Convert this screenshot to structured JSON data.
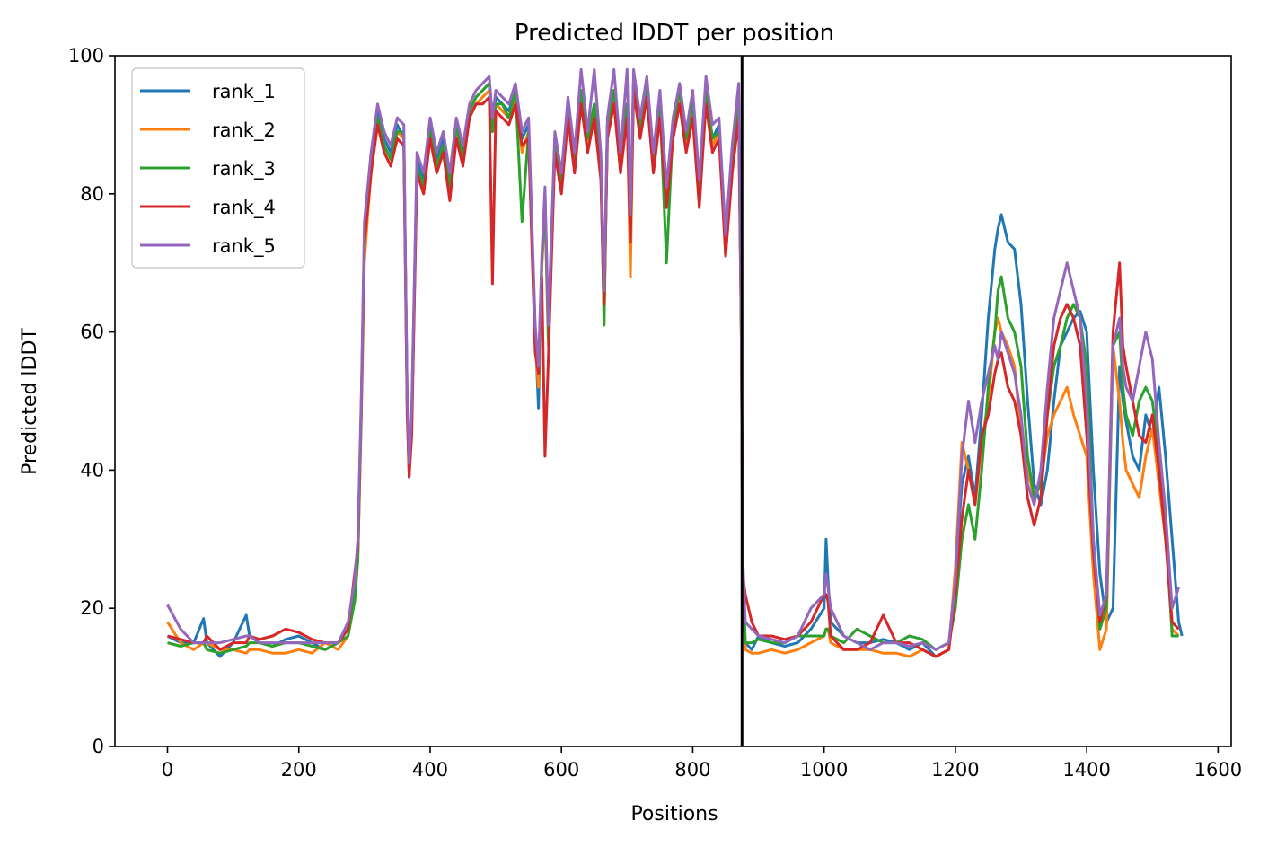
{
  "chart_data": {
    "type": "line",
    "title": "Predicted lDDT per position",
    "xlabel": "Positions",
    "ylabel": "Predicted lDDT",
    "xlim": [
      -80,
      1620
    ],
    "ylim": [
      0,
      100
    ],
    "xticks": [
      0,
      200,
      400,
      600,
      800,
      1000,
      1200,
      1400,
      1600
    ],
    "yticks": [
      0,
      20,
      40,
      60,
      80,
      100
    ],
    "grid": false,
    "legend_position": "top-left",
    "chain_break_x": 875,
    "series": [
      {
        "name": "rank_1",
        "color": "#1f77b4"
      },
      {
        "name": "rank_2",
        "color": "#ff7f0e"
      },
      {
        "name": "rank_3",
        "color": "#2ca02c"
      },
      {
        "name": "rank_4",
        "color": "#d62728"
      },
      {
        "name": "rank_5",
        "color": "#9467bd"
      }
    ],
    "x": [
      0,
      20,
      40,
      55,
      60,
      80,
      100,
      120,
      125,
      140,
      160,
      180,
      200,
      220,
      240,
      260,
      275,
      285,
      290,
      295,
      300,
      305,
      310,
      320,
      330,
      340,
      350,
      360,
      365,
      368,
      372,
      380,
      390,
      400,
      410,
      420,
      430,
      440,
      450,
      460,
      470,
      480,
      490,
      495,
      500,
      510,
      520,
      530,
      540,
      550,
      560,
      565,
      570,
      575,
      580,
      590,
      600,
      610,
      620,
      630,
      640,
      650,
      660,
      665,
      670,
      680,
      690,
      700,
      705,
      710,
      720,
      730,
      740,
      750,
      760,
      770,
      780,
      790,
      800,
      810,
      820,
      830,
      840,
      850,
      860,
      870,
      874,
      876,
      880,
      890,
      900,
      920,
      940,
      960,
      980,
      1000,
      1003,
      1006,
      1010,
      1030,
      1050,
      1070,
      1090,
      1110,
      1130,
      1150,
      1170,
      1190,
      1200,
      1210,
      1220,
      1230,
      1240,
      1250,
      1260,
      1265,
      1270,
      1280,
      1290,
      1300,
      1310,
      1320,
      1330,
      1340,
      1350,
      1360,
      1370,
      1380,
      1390,
      1400,
      1410,
      1420,
      1430,
      1440,
      1450,
      1455,
      1460,
      1470,
      1480,
      1490,
      1500,
      1510,
      1520,
      1530,
      1540,
      1545
    ],
    "values": [
      [
        16,
        15,
        15,
        18.5,
        15,
        13,
        15,
        19,
        16,
        15,
        14.5,
        15.5,
        16,
        15,
        14,
        15,
        17,
        22,
        28,
        48,
        75,
        80,
        85,
        92,
        88,
        86,
        90,
        88,
        50,
        39,
        48,
        85,
        82,
        90,
        85,
        88,
        82,
        90,
        86,
        92,
        94,
        95,
        96,
        90,
        94,
        93,
        92,
        95,
        88,
        90,
        60,
        49,
        70,
        80,
        60,
        88,
        82,
        93,
        85,
        95,
        88,
        93,
        85,
        62,
        90,
        95,
        85,
        93,
        75,
        97,
        90,
        96,
        85,
        93,
        80,
        90,
        95,
        88,
        93,
        80,
        95,
        88,
        90,
        72,
        85,
        93,
        60,
        27,
        15,
        14,
        16,
        15,
        14.5,
        15,
        17,
        20,
        30,
        24,
        18,
        16,
        15,
        15,
        15.5,
        15,
        14,
        15,
        13,
        14,
        25,
        38,
        42,
        36,
        48,
        62,
        72,
        75,
        77,
        73,
        72,
        64,
        50,
        38,
        35,
        40,
        50,
        58,
        60,
        62,
        63,
        60,
        40,
        25,
        18,
        20,
        55,
        50,
        47,
        42,
        40,
        48,
        45,
        52,
        42,
        30,
        18,
        16
      ],
      [
        18,
        15,
        14,
        15,
        15,
        14,
        14,
        13.5,
        14,
        14,
        13.5,
        13.5,
        14,
        13.5,
        15,
        14,
        16,
        21,
        27,
        47,
        70,
        77,
        83,
        91,
        87,
        85,
        89,
        88,
        50,
        40,
        47,
        84,
        80,
        89,
        84,
        87,
        80,
        89,
        85,
        91,
        93,
        94,
        95,
        89,
        93,
        92,
        91,
        94,
        86,
        89,
        58,
        52,
        69,
        78,
        58,
        87,
        81,
        92,
        84,
        94,
        87,
        92,
        84,
        61,
        89,
        94,
        84,
        92,
        68,
        96,
        89,
        95,
        84,
        92,
        79,
        89,
        94,
        87,
        92,
        79,
        94,
        87,
        89,
        71,
        84,
        92,
        59,
        24,
        14,
        13.5,
        13.5,
        14,
        13.5,
        14,
        15,
        16,
        17,
        17,
        15,
        14,
        14,
        14,
        13.5,
        13.5,
        13,
        14,
        13,
        14,
        26,
        44,
        40,
        35,
        44,
        50,
        60,
        62,
        60,
        58,
        55,
        45,
        40,
        36,
        38,
        45,
        48,
        50,
        52,
        48,
        45,
        42,
        25,
        14,
        17,
        58,
        50,
        44,
        40,
        38,
        36,
        42,
        46,
        38,
        30,
        17,
        16
      ],
      [
        15,
        14.5,
        15,
        15,
        14,
        13.5,
        14,
        14.5,
        15,
        15,
        14.5,
        15,
        15,
        14.5,
        14,
        15,
        16,
        21,
        27,
        48,
        74,
        79,
        84,
        91,
        87,
        85,
        89,
        89,
        50,
        40,
        47,
        84,
        81,
        89,
        84,
        87,
        81,
        90,
        85,
        92,
        94,
        95,
        96,
        89,
        93,
        93,
        91,
        95,
        76,
        89,
        59,
        54,
        70,
        79,
        59,
        88,
        81,
        93,
        84,
        95,
        88,
        93,
        84,
        61,
        90,
        95,
        84,
        93,
        74,
        97,
        89,
        96,
        84,
        93,
        70,
        90,
        95,
        88,
        93,
        80,
        95,
        88,
        89,
        73,
        84,
        93,
        60,
        26,
        15,
        15,
        15.5,
        15,
        15,
        16,
        16,
        16,
        17,
        17,
        16,
        15,
        17,
        16,
        15,
        15,
        16,
        15.5,
        14,
        15,
        20,
        30,
        35,
        30,
        40,
        52,
        60,
        66,
        68,
        62,
        60,
        55,
        42,
        36,
        38,
        48,
        55,
        58,
        62,
        64,
        62,
        55,
        30,
        17,
        20,
        58,
        60,
        52,
        48,
        45,
        50,
        52,
        50,
        42,
        32,
        16,
        16
      ],
      [
        16,
        15.5,
        15,
        15,
        16,
        14,
        15,
        15,
        16,
        15.5,
        16,
        17,
        16.5,
        15.5,
        15,
        15,
        17,
        25,
        29,
        49,
        73,
        78,
        83,
        90,
        86,
        84,
        88,
        87,
        48,
        39,
        45,
        83,
        80,
        88,
        83,
        86,
        79,
        88,
        84,
        91,
        93,
        93,
        94,
        67,
        92,
        91,
        90,
        93,
        87,
        88,
        57,
        54,
        68,
        42,
        56,
        86,
        80,
        91,
        83,
        93,
        86,
        91,
        82,
        64,
        88,
        93,
        83,
        91,
        73,
        95,
        88,
        94,
        83,
        91,
        78,
        88,
        93,
        86,
        91,
        78,
        93,
        86,
        88,
        71,
        83,
        91,
        59,
        25,
        22,
        18,
        16,
        16,
        15.5,
        16,
        18,
        22,
        22,
        21,
        16,
        14,
        14,
        15,
        19,
        15,
        15,
        14,
        13,
        14,
        22,
        33,
        40,
        35,
        45,
        48,
        54,
        56,
        57,
        52,
        50,
        45,
        36,
        32,
        36,
        48,
        58,
        62,
        64,
        62,
        58,
        45,
        28,
        18,
        22,
        60,
        70,
        58,
        55,
        50,
        45,
        44,
        48,
        40,
        30,
        18,
        17
      ],
      [
        20.5,
        17,
        15,
        15,
        15,
        15,
        15.5,
        16,
        16,
        15,
        15,
        15,
        15,
        15,
        15,
        15,
        18,
        24,
        30,
        50,
        76,
        81,
        86,
        93,
        89,
        87,
        91,
        90,
        51,
        41,
        49,
        86,
        83,
        91,
        86,
        89,
        83,
        91,
        87,
        93,
        95,
        96,
        97,
        91,
        95,
        94,
        93,
        96,
        89,
        91,
        61,
        55,
        71,
        81,
        61,
        89,
        83,
        94,
        86,
        98,
        89,
        98,
        86,
        66,
        91,
        98,
        86,
        98,
        77,
        98,
        91,
        97,
        86,
        95,
        81,
        91,
        96,
        89,
        95,
        82,
        97,
        90,
        91,
        74,
        87,
        96,
        62,
        28,
        18,
        17,
        16,
        15.5,
        15,
        16,
        20,
        22,
        25,
        23,
        20,
        16,
        15,
        14,
        15,
        15,
        14.5,
        15,
        14,
        15,
        24,
        42,
        50,
        44,
        50,
        54,
        58,
        56,
        60,
        57,
        54,
        48,
        38,
        35,
        40,
        52,
        62,
        66,
        70,
        66,
        62,
        50,
        30,
        19,
        22,
        58,
        62,
        55,
        52,
        50,
        55,
        60,
        56,
        44,
        34,
        20,
        23
      ]
    ]
  }
}
